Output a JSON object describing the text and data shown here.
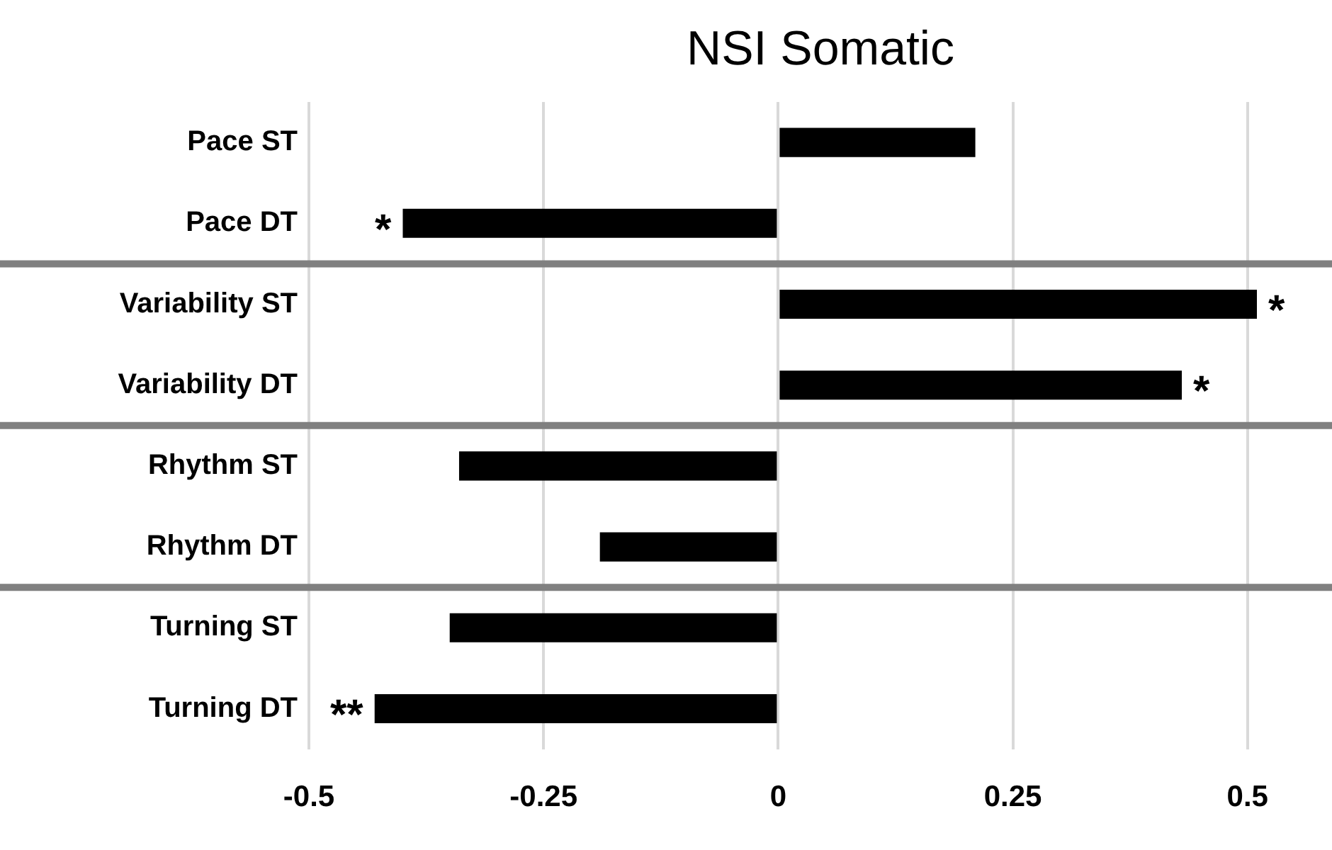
{
  "chart_data": {
    "type": "bar",
    "orientation": "horizontal",
    "title": "NSI Somatic",
    "categories": [
      "Pace ST",
      "Pace DT",
      "Variability ST",
      "Variability DT",
      "Rhythm ST",
      "Rhythm DT",
      "Turning ST",
      "Turning DT"
    ],
    "values": [
      0.21,
      -0.4,
      0.51,
      0.43,
      -0.34,
      -0.19,
      -0.35,
      -0.43
    ],
    "color": "#000000",
    "xlim": [
      -0.5,
      0.59
    ],
    "xticks": [
      -0.5,
      -0.25,
      0,
      0.25,
      0.5
    ],
    "grid": "x",
    "legend": false,
    "annotations": [
      {
        "text": "*",
        "x": -0.4,
        "y": "Pace DT"
      },
      {
        "text": "*",
        "x": 0.51,
        "y": "Variability ST"
      },
      {
        "text": "*",
        "x": 0.43,
        "y": "Variability DT"
      },
      {
        "text": "**",
        "x": -0.43,
        "y": "Turning DT"
      }
    ]
  }
}
